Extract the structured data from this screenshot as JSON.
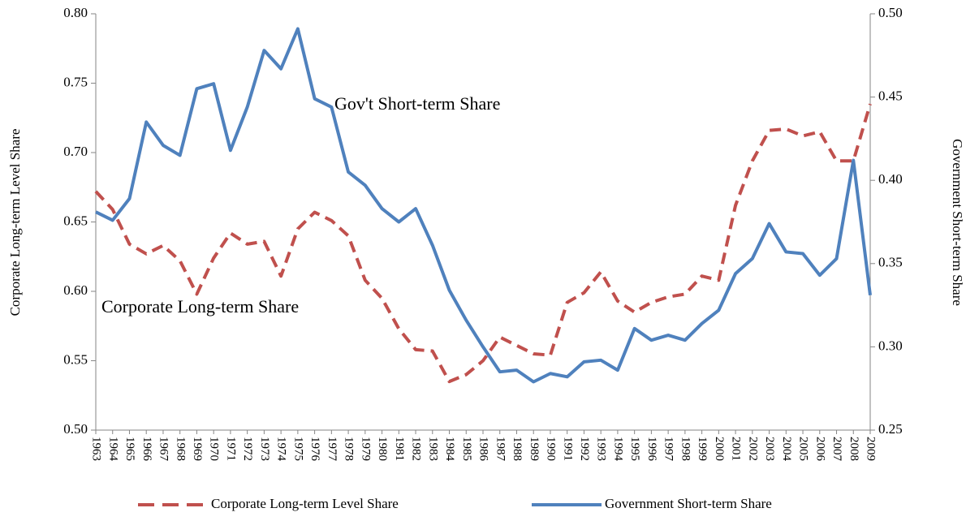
{
  "chart_data": {
    "type": "line",
    "categories": [
      "1963",
      "1964",
      "1965",
      "1966",
      "1967",
      "1968",
      "1969",
      "1970",
      "1971",
      "1972",
      "1973",
      "1974",
      "1975",
      "1976",
      "1977",
      "1978",
      "1979",
      "1980",
      "1981",
      "1982",
      "1983",
      "1984",
      "1985",
      "1986",
      "1987",
      "1988",
      "1989",
      "1990",
      "1991",
      "1992",
      "1993",
      "1994",
      "1995",
      "1996",
      "1997",
      "1998",
      "1999",
      "2000",
      "2001",
      "2002",
      "2003",
      "2004",
      "2005",
      "2006",
      "2007",
      "2008",
      "2009"
    ],
    "series": [
      {
        "name": "Corporate Long-term Level Share",
        "color": "#c0504d",
        "dash": true,
        "axis": "y",
        "values": [
          0.672,
          0.659,
          0.634,
          0.627,
          0.633,
          0.622,
          0.598,
          0.624,
          0.642,
          0.634,
          0.636,
          0.611,
          0.645,
          0.657,
          0.651,
          0.64,
          0.608,
          0.595,
          0.573,
          0.558,
          0.557,
          0.535,
          0.54,
          0.55,
          0.567,
          0.561,
          0.555,
          0.554,
          0.592,
          0.599,
          0.614,
          0.593,
          0.585,
          0.592,
          0.596,
          0.598,
          0.611,
          0.608,
          0.662,
          0.694,
          0.716,
          0.717,
          0.712,
          0.715,
          0.694,
          0.694,
          0.735
        ]
      },
      {
        "name": "Government Short-term Share",
        "color": "#4f81bd",
        "dash": false,
        "axis": "y2",
        "values": [
          0.381,
          0.376,
          0.389,
          0.435,
          0.421,
          0.415,
          0.455,
          0.458,
          0.418,
          0.444,
          0.478,
          0.467,
          0.491,
          0.449,
          0.444,
          0.405,
          0.397,
          0.383,
          0.375,
          0.383,
          0.361,
          0.334,
          0.316,
          0.3,
          0.285,
          0.286,
          0.279,
          0.284,
          0.282,
          0.291,
          0.292,
          0.286,
          0.311,
          0.304,
          0.307,
          0.304,
          0.314,
          0.322,
          0.344,
          0.353,
          0.374,
          0.357,
          0.356,
          0.343,
          0.353,
          0.412,
          0.331
        ]
      }
    ],
    "y_label": "Corporate Long-term Level Share",
    "y2_label": "Government Short-term Share",
    "ylim": [
      0.5,
      0.8
    ],
    "yticks": [
      {
        "value": 0.5,
        "label": "0.50"
      },
      0.55,
      {
        "value": 0.6,
        "label": "0.60"
      },
      0.65,
      {
        "value": 0.7,
        "label": "0.70"
      },
      0.75,
      {
        "value": 0.8,
        "label": "0.80"
      }
    ],
    "y2lim": [
      0.25,
      0.5
    ],
    "y2ticks": [
      0.25,
      {
        "value": 0.3,
        "label": "0.30"
      },
      0.35,
      {
        "value": 0.4,
        "label": "0.40"
      },
      0.45,
      {
        "value": 0.5,
        "label": "0.50"
      }
    ],
    "annotations": [
      "Gov't Short-term Share",
      "Corporate Long-term Share"
    ],
    "legend": "bottom"
  }
}
